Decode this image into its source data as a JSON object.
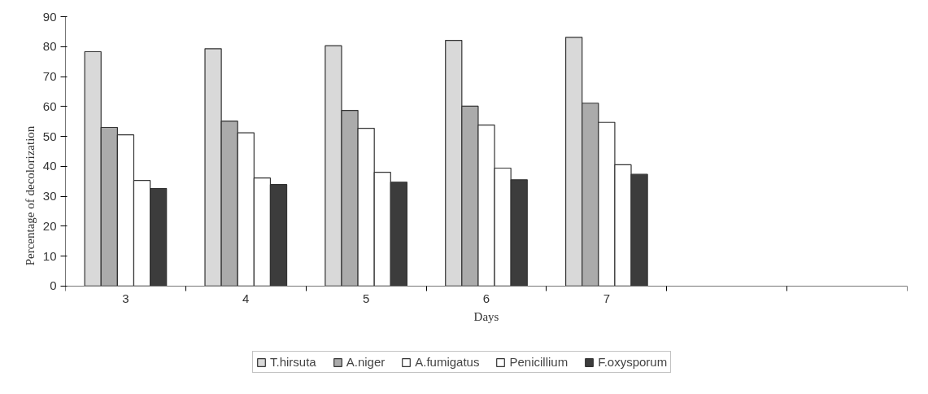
{
  "chart_data": {
    "type": "bar",
    "xlabel": "Days",
    "ylabel": "Percentage of decolorization",
    "categories": [
      "3",
      "4",
      "5",
      "6",
      "7",
      null,
      null
    ],
    "series": [
      {
        "name": "T.hirsuta",
        "color": "#d9d9d9",
        "values": [
          78.3,
          79.3,
          80.3,
          82.1,
          83.1,
          null,
          null
        ]
      },
      {
        "name": "A.niger",
        "color": "#ababab",
        "values": [
          53.0,
          55.1,
          58.7,
          60.1,
          61.1,
          null,
          null
        ]
      },
      {
        "name": "A.fumigatus",
        "color": "#ffffff",
        "values": [
          50.5,
          51.2,
          52.7,
          53.8,
          54.7,
          null,
          null
        ]
      },
      {
        "name": "Penicillium",
        "color": "#ffffff",
        "values": [
          35.3,
          36.1,
          38.0,
          39.4,
          40.5,
          null,
          null
        ]
      },
      {
        "name": "F.oxysporum",
        "color": "#3c3c3c",
        "values": [
          32.6,
          33.9,
          34.7,
          35.5,
          37.3,
          null,
          null
        ]
      }
    ],
    "ylim": [
      0,
      90
    ],
    "yticks": [
      0,
      10,
      20,
      30,
      40,
      50,
      60,
      70,
      80,
      90
    ],
    "grid": false,
    "legend": "bottom"
  }
}
